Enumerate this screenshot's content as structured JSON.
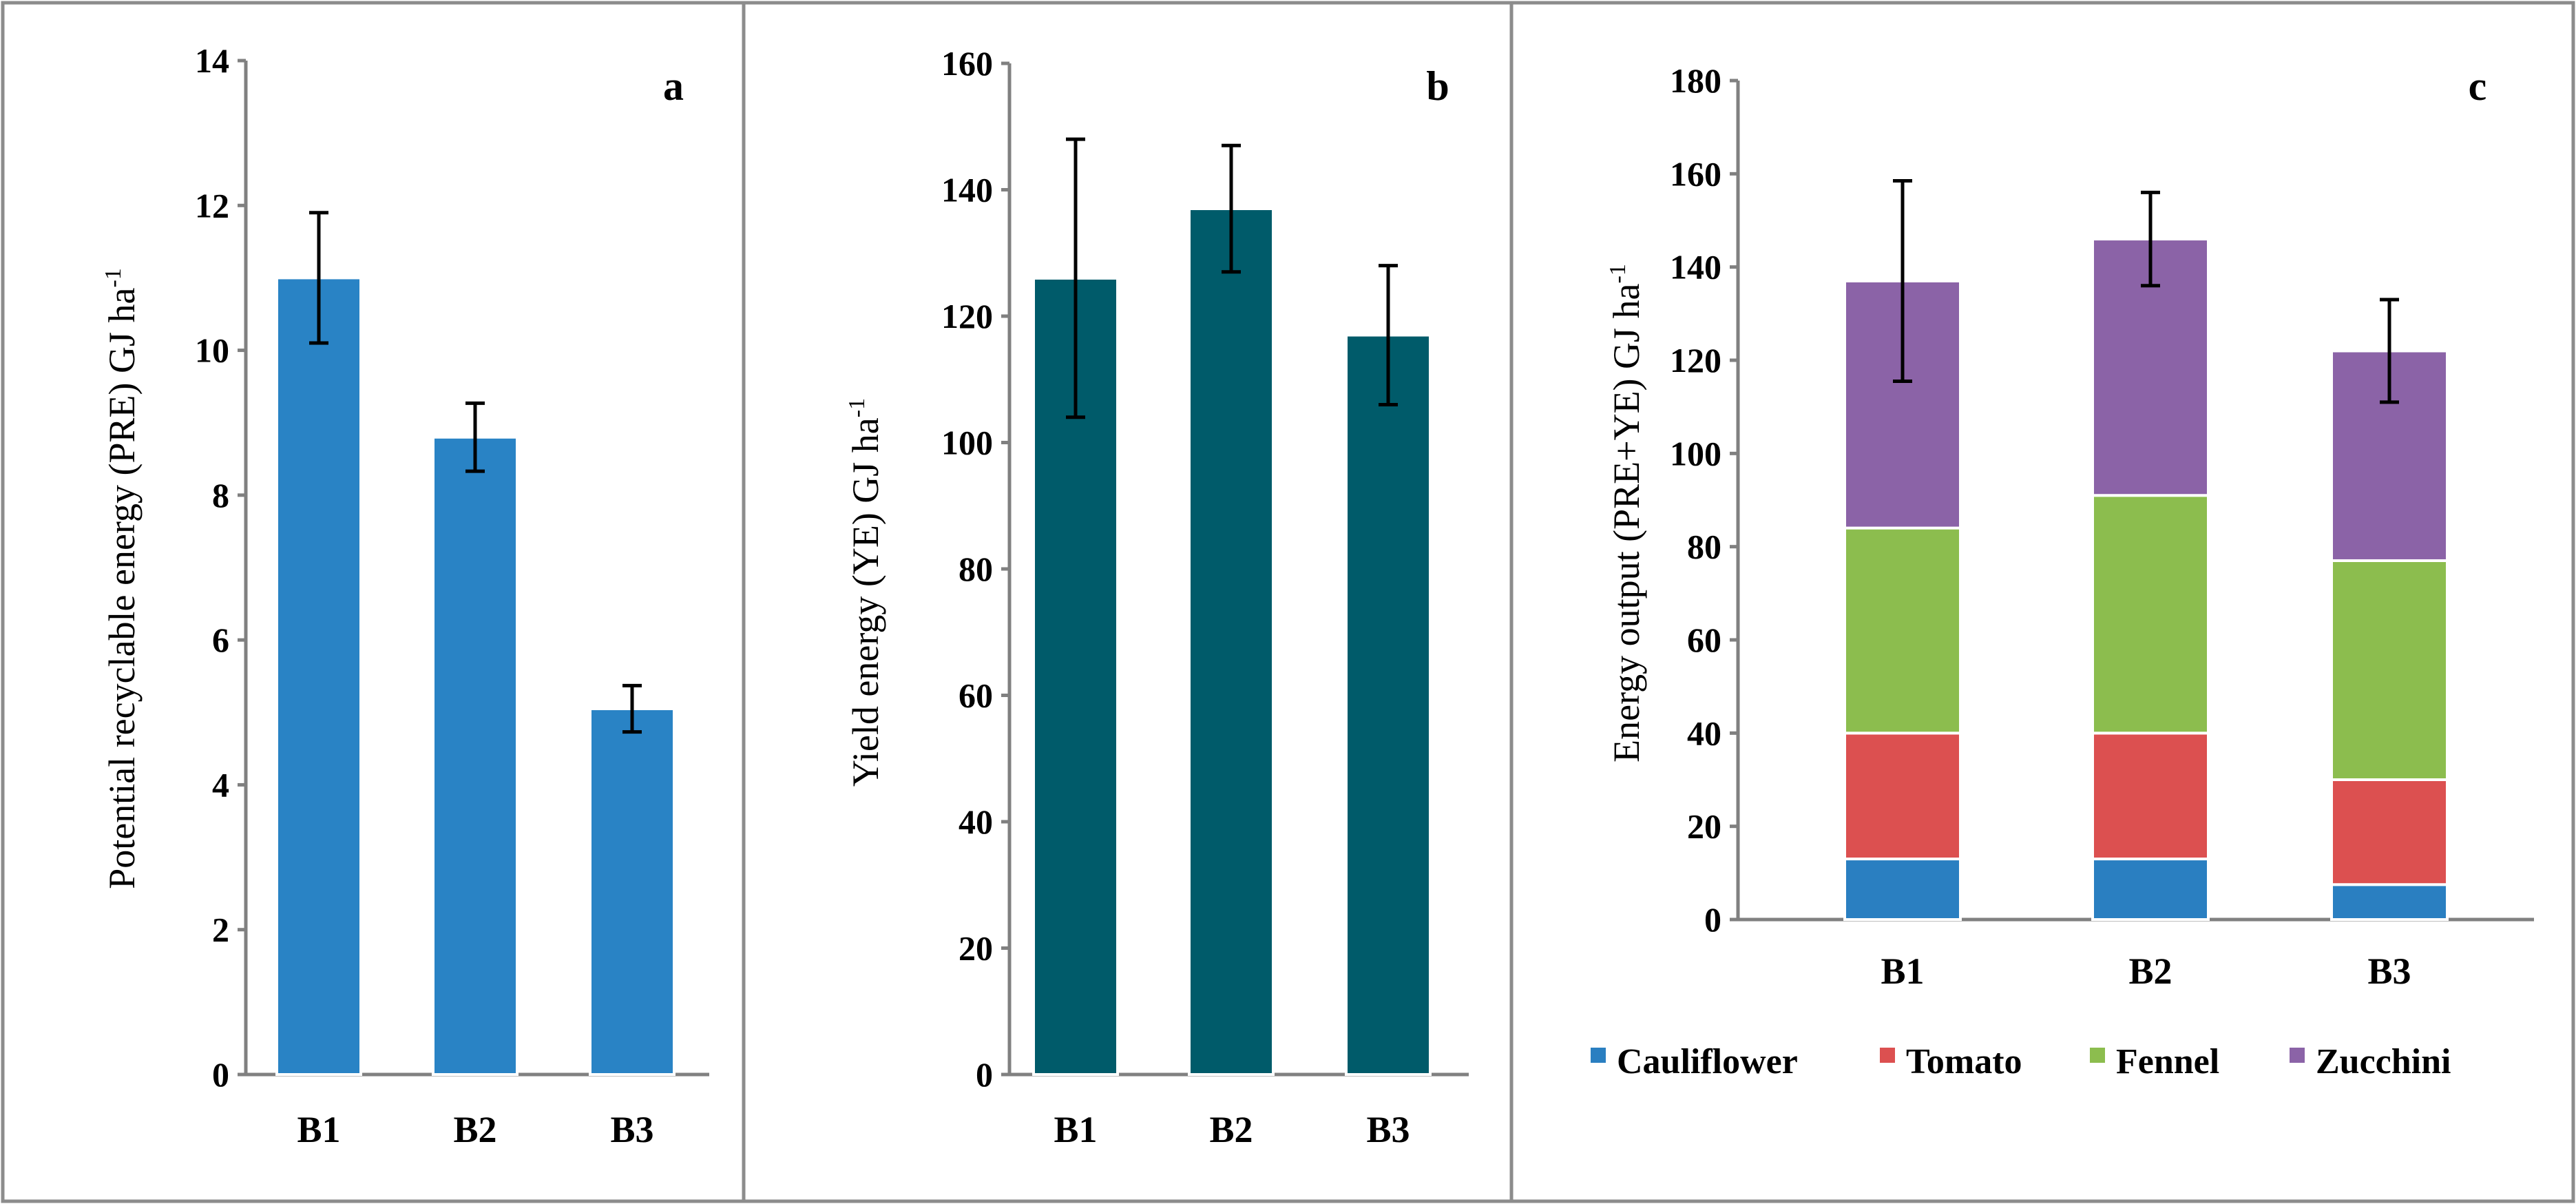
{
  "chart_data": [
    {
      "panel_label": "a",
      "type": "bar",
      "categories": [
        "B1",
        "B2",
        "B3"
      ],
      "series": [
        {
          "name": "PRE",
          "color": "#2983c5",
          "values": [
            11.0,
            8.8,
            5.05
          ],
          "errors": [
            0.9,
            0.47,
            0.32
          ]
        }
      ],
      "ylabel": "Potential recyclable energy  (PRE) GJ ha",
      "ylabel_sup": "-1",
      "ylim": [
        0,
        14
      ],
      "yticks": [
        0,
        2,
        4,
        6,
        8,
        10,
        12,
        14
      ],
      "xlabel": "",
      "grid": false
    },
    {
      "panel_label": "b",
      "type": "bar",
      "categories": [
        "B1",
        "B2",
        "B3"
      ],
      "series": [
        {
          "name": "YE",
          "color": "#005b6a",
          "values": [
            126,
            137,
            117
          ],
          "errors": [
            22,
            10,
            11
          ]
        }
      ],
      "ylabel": "Yield energy (YE) GJ ha",
      "ylabel_sup": "-1",
      "ylim": [
        0,
        160
      ],
      "yticks": [
        0,
        20,
        40,
        60,
        80,
        100,
        120,
        140,
        160
      ],
      "xlabel": "",
      "grid": false
    },
    {
      "panel_label": "c",
      "type": "bar",
      "stacked": true,
      "categories": [
        "B1",
        "B2",
        "B3"
      ],
      "series": [
        {
          "name": "Cauliflower",
          "color": "#2a7fc1",
          "values": [
            13,
            13,
            7.5
          ]
        },
        {
          "name": "Tomato",
          "color": "#dc5050",
          "values": [
            27,
            27,
            22.5
          ]
        },
        {
          "name": "Fennel",
          "color": "#8cbd4e",
          "values": [
            44,
            51,
            47
          ]
        },
        {
          "name": "Zucchini",
          "color": "#8b63a7",
          "values": [
            53,
            55,
            45
          ]
        }
      ],
      "totals": [
        137,
        146,
        122
      ],
      "errors": [
        21.5,
        10,
        11
      ],
      "ylabel": "Energy output  (PRE+YE) GJ ha",
      "ylabel_sup": "-1",
      "ylim": [
        0,
        180
      ],
      "yticks": [
        0,
        20,
        40,
        60,
        80,
        100,
        120,
        140,
        160,
        180
      ],
      "xlabel": "",
      "legend_position": "bottom",
      "grid": false
    }
  ]
}
